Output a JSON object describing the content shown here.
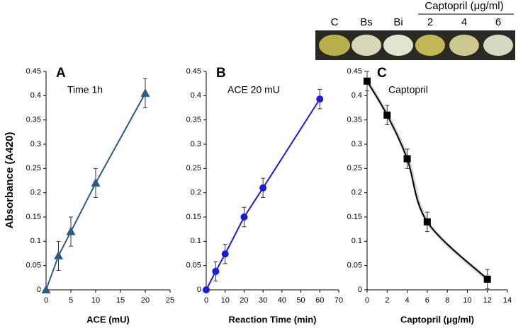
{
  "chart_data": [
    {
      "type": "line",
      "label": "A",
      "annotation": "Time 1h",
      "x_label": "ACE (mU)",
      "y_label": "Absorbance (A420)",
      "x": [
        0,
        2.5,
        5,
        10,
        20
      ],
      "series": [
        {
          "color": "#2b5b86",
          "marker": "triangle",
          "values": [
            0,
            0.07,
            0.12,
            0.22,
            0.405
          ],
          "errors": [
            0,
            0.03,
            0.03,
            0.03,
            0.03
          ]
        }
      ],
      "xlim": [
        0,
        25
      ],
      "ylim": [
        0,
        0.45
      ],
      "xticks": [
        0,
        5,
        10,
        15,
        20,
        25
      ],
      "yticks": [
        0,
        0.05,
        0.1,
        0.15,
        0.2,
        0.25,
        0.3,
        0.35,
        0.4,
        0.45
      ],
      "smooth": false
    },
    {
      "type": "line",
      "label": "B",
      "annotation": "ACE 20 mU",
      "x_label": "Reaction Time (min)",
      "x": [
        0,
        5,
        10,
        20,
        30,
        60
      ],
      "series": [
        {
          "color": "#1a1ae6",
          "marker": "circle",
          "values": [
            0,
            0.038,
            0.074,
            0.15,
            0.21,
            0.393
          ],
          "errors": [
            0,
            0.02,
            0.02,
            0.02,
            0.02,
            0.02
          ]
        }
      ],
      "xlim": [
        0,
        70
      ],
      "ylim": [
        0,
        0.45
      ],
      "xticks": [
        0,
        10,
        20,
        30,
        40,
        50,
        60,
        70
      ],
      "yticks": [
        0,
        0.05,
        0.1,
        0.15,
        0.2,
        0.25,
        0.3,
        0.35,
        0.4,
        0.45
      ],
      "smooth": false
    },
    {
      "type": "line",
      "label": "C",
      "annotation": "Captopril",
      "x_label": "Captopril (μg/ml)",
      "x": [
        0,
        2,
        4,
        6,
        12
      ],
      "series": [
        {
          "color": "#000000",
          "marker": "square",
          "values": [
            0.43,
            0.36,
            0.27,
            0.14,
            0.022
          ],
          "errors": [
            0.02,
            0.02,
            0.02,
            0.02,
            0.02
          ]
        }
      ],
      "xlim": [
        0,
        14
      ],
      "ylim": [
        0,
        0.45
      ],
      "xticks": [
        0,
        2,
        4,
        6,
        8,
        10,
        12,
        14
      ],
      "yticks": [
        0,
        0.05,
        0.1,
        0.15,
        0.2,
        0.25,
        0.3,
        0.35,
        0.4,
        0.45
      ],
      "smooth": true
    }
  ],
  "inset": {
    "header": "Captopril (μg/ml)",
    "wells": [
      "C",
      "Bs",
      "Bi",
      "2",
      "4",
      "6"
    ]
  }
}
